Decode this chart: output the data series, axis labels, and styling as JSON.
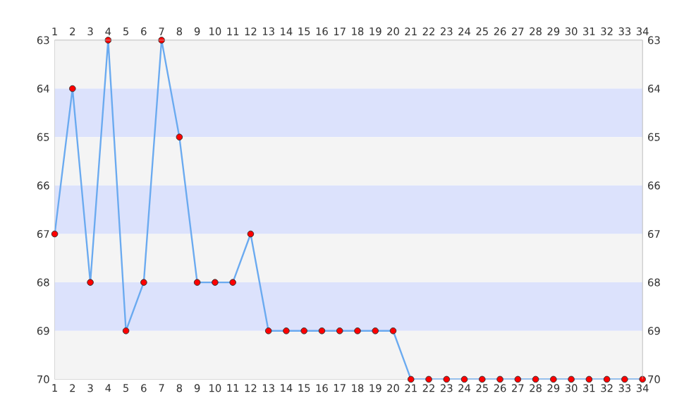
{
  "chart_data": {
    "type": "line",
    "x": [
      1,
      2,
      3,
      4,
      5,
      6,
      7,
      8,
      9,
      10,
      11,
      12,
      13,
      14,
      15,
      16,
      17,
      18,
      19,
      20,
      21,
      22,
      23,
      24,
      25,
      26,
      27,
      28,
      29,
      30,
      31,
      32,
      33,
      34
    ],
    "series": [
      {
        "color": "#6aaaf0",
        "values": [
          67,
          64,
          68,
          63,
          69,
          68,
          63,
          65,
          68,
          68,
          68,
          67,
          69,
          69,
          69,
          69,
          69,
          69,
          69,
          69,
          70,
          70,
          70,
          70,
          70,
          70,
          70,
          70,
          70,
          70,
          70,
          70,
          70,
          70
        ]
      }
    ],
    "xlim": [
      1,
      34
    ],
    "xticks": [
      1,
      2,
      3,
      4,
      5,
      6,
      7,
      8,
      9,
      10,
      11,
      12,
      13,
      14,
      15,
      16,
      17,
      18,
      19,
      20,
      21,
      22,
      23,
      24,
      25,
      26,
      27,
      28,
      29,
      30,
      31,
      32,
      33,
      34
    ],
    "x2lim": [
      1,
      34
    ],
    "x2ticks": [
      1,
      2,
      3,
      4,
      5,
      6,
      7,
      8,
      9,
      10,
      11,
      12,
      13,
      14,
      15,
      16,
      17,
      18,
      19,
      20,
      21,
      22,
      23,
      24,
      25,
      26,
      27,
      28,
      29,
      30,
      31,
      32,
      33,
      34
    ],
    "ylim": [
      70,
      63
    ],
    "yticks": [
      63,
      64,
      65,
      66,
      67,
      68,
      69,
      70
    ],
    "y2lim": [
      70,
      63
    ],
    "y2ticks": [
      63,
      64,
      65,
      66,
      67,
      68,
      69,
      70
    ],
    "bands": [
      {
        "axis": "y",
        "from": 63,
        "to": 64,
        "color": "#f4f4f4"
      },
      {
        "axis": "y",
        "from": 64,
        "to": 65,
        "color": "#dce2fc"
      },
      {
        "axis": "y",
        "from": 65,
        "to": 66,
        "color": "#f4f4f4"
      },
      {
        "axis": "y",
        "from": 66,
        "to": 67,
        "color": "#dce2fc"
      },
      {
        "axis": "y",
        "from": 67,
        "to": 68,
        "color": "#f4f4f4"
      },
      {
        "axis": "y",
        "from": 68,
        "to": 69,
        "color": "#dce2fc"
      },
      {
        "axis": "y",
        "from": 69,
        "to": 70,
        "color": "#f4f4f4"
      }
    ],
    "marker": "circle",
    "line_style": "solid"
  }
}
